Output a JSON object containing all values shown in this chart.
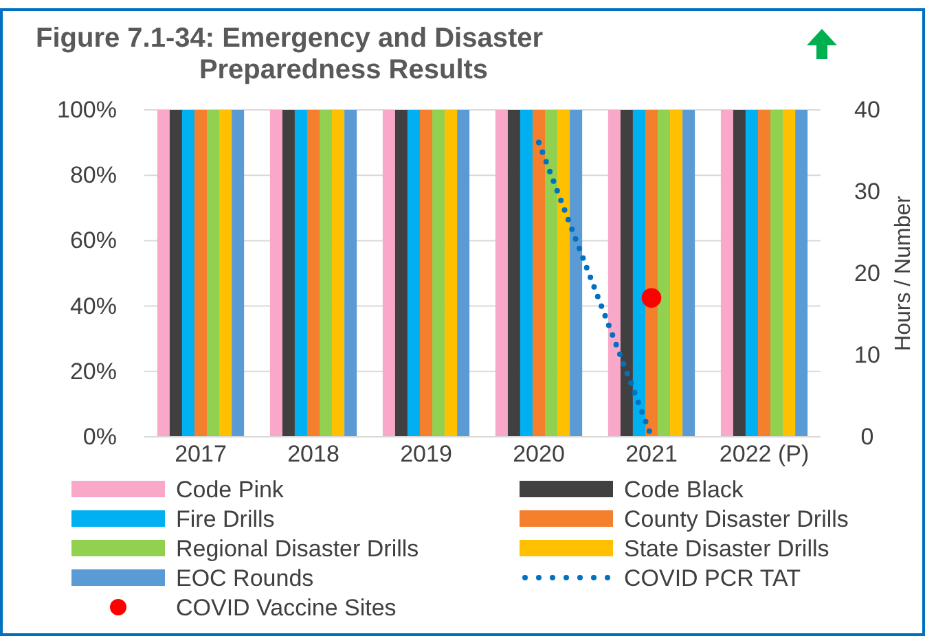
{
  "chart_data": {
    "type": "bar",
    "title": "Figure 7.1-34: Emergency and Disaster Preparedness Results",
    "categories": [
      "2017",
      "2018",
      "2019",
      "2020",
      "2021",
      "2022 (P)"
    ],
    "series": [
      {
        "name": "Code Pink",
        "color": "#f9a8c9",
        "values": [
          100,
          100,
          100,
          100,
          100,
          100
        ]
      },
      {
        "name": "Code Black",
        "color": "#404040",
        "values": [
          100,
          100,
          100,
          100,
          100,
          100
        ]
      },
      {
        "name": "Fire Drills",
        "color": "#00b0f0",
        "values": [
          100,
          100,
          100,
          100,
          100,
          100
        ]
      },
      {
        "name": "County Disaster Drills",
        "color": "#f4802e",
        "values": [
          100,
          100,
          100,
          100,
          100,
          100
        ]
      },
      {
        "name": "Regional Disaster Drills",
        "color": "#92d050",
        "values": [
          100,
          100,
          100,
          100,
          100,
          100
        ]
      },
      {
        "name": "State Disaster Drills",
        "color": "#ffc000",
        "values": [
          100,
          100,
          100,
          100,
          100,
          100
        ]
      },
      {
        "name": "EOC Rounds",
        "color": "#5b9bd5",
        "values": [
          100,
          100,
          100,
          100,
          100,
          100
        ]
      },
      {
        "name": "COVID PCR TAT",
        "type": "line",
        "axis": "y2",
        "line_style": "dotted",
        "marker": "none",
        "color": "#0070c0",
        "values": [
          null,
          null,
          null,
          36,
          0,
          null
        ]
      },
      {
        "name": "COVID Vaccine Sites",
        "type": "scatter",
        "axis": "y2",
        "marker": "circle",
        "color": "#ff0000",
        "values": [
          null,
          null,
          null,
          null,
          17,
          null
        ]
      }
    ],
    "ylim": [
      0,
      100
    ],
    "yticks": [
      {
        "value": 0,
        "label": "0%"
      },
      {
        "value": 20,
        "label": "20%"
      },
      {
        "value": 40,
        "label": "40%"
      },
      {
        "value": 60,
        "label": "60%"
      },
      {
        "value": 80,
        "label": "80%"
      },
      {
        "value": 100,
        "label": "100%"
      }
    ],
    "y2label": "Hours / Number",
    "y2lim": [
      0,
      40
    ],
    "y2ticks": [
      0,
      10,
      20,
      30,
      40
    ],
    "grid": "y",
    "legend": "bottom"
  }
}
